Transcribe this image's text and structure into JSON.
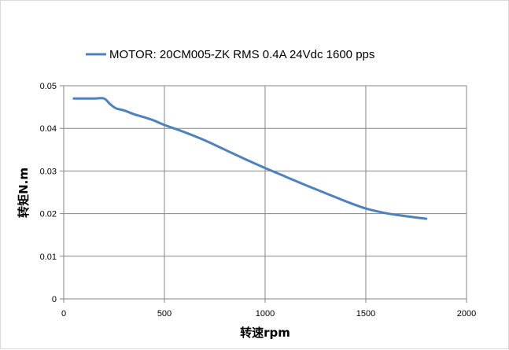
{
  "chart_data": {
    "type": "line",
    "xlabel": "转速rpm",
    "ylabel": "转矩N.m",
    "xlim": [
      0,
      2000
    ],
    "ylim": [
      0,
      0.05
    ],
    "x_ticks": [
      0,
      500,
      1000,
      1500,
      2000
    ],
    "y_ticks": [
      0,
      0.01,
      0.02,
      0.03,
      0.04,
      0.05
    ],
    "x_tick_labels": [
      "0",
      "500",
      "1000",
      "1500",
      "2000"
    ],
    "y_tick_labels": [
      "0",
      "0.01",
      "0.02",
      "0.03",
      "0.04",
      "0.05"
    ],
    "grid": true,
    "legend_position": "top",
    "series": [
      {
        "name": "MOTOR: 20CM005-ZK RMS 0.4A  24Vdc  1600 pps",
        "color": "#4f81bd",
        "x": [
          50,
          100,
          150,
          200,
          230,
          260,
          300,
          350,
          400,
          450,
          500,
          600,
          700,
          800,
          900,
          1000,
          1100,
          1200,
          1300,
          1400,
          1500,
          1600,
          1700,
          1800
        ],
        "y": [
          0.047,
          0.047,
          0.047,
          0.047,
          0.0457,
          0.0447,
          0.0442,
          0.0433,
          0.0426,
          0.0418,
          0.0408,
          0.0391,
          0.0372,
          0.035,
          0.0328,
          0.0307,
          0.0287,
          0.0267,
          0.0248,
          0.0229,
          0.0212,
          0.0201,
          0.0194,
          0.0188
        ]
      }
    ]
  }
}
